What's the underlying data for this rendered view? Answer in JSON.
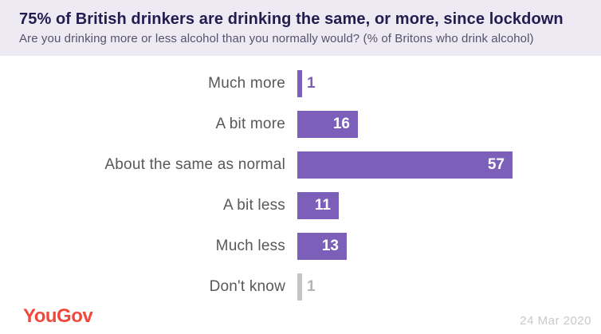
{
  "header": {
    "title": "75% of British drinkers are drinking the same, or more, since lockdown",
    "subtitle": "Are you drinking more or less alcohol than you normally would? (% of Britons who drink alcohol)"
  },
  "chart_data": {
    "type": "bar",
    "orientation": "horizontal",
    "title": "75% of British drinkers are drinking the same, or more, since lockdown",
    "subtitle": "Are you drinking more or less alcohol than you normally would? (% of Britons who drink alcohol)",
    "xlabel": "",
    "ylabel": "",
    "xlim": [
      0,
      60
    ],
    "grid": false,
    "legend": "none",
    "categories": [
      "Much more",
      "A bit more",
      "About the same as normal",
      "A bit less",
      "Much less",
      "Don't know"
    ],
    "values": [
      1,
      16,
      57,
      11,
      13,
      1
    ],
    "bar_colors": [
      "#7b5fb8",
      "#7b5fb8",
      "#7b5fb8",
      "#7b5fb8",
      "#7b5fb8",
      "#c5c4c7"
    ],
    "value_label_styles": [
      "outside-purple",
      "inside",
      "inside",
      "inside",
      "inside",
      "outside-gray"
    ]
  },
  "footer": {
    "logo_text": "YouGov",
    "date": "24 Mar 2020"
  },
  "colors": {
    "header_background": "#edeaf4",
    "title_text": "#221c4f",
    "subtitle_text": "#56526c",
    "bar_purple": "#7b5fb8",
    "bar_gray": "#c5c4c7",
    "category_label_text": "#58585a",
    "value_inside_text": "#ffffff",
    "value_outside_gray_text": "#b3b2b5",
    "logo_red": "#f1483c",
    "date_text": "#c9c8cc"
  }
}
